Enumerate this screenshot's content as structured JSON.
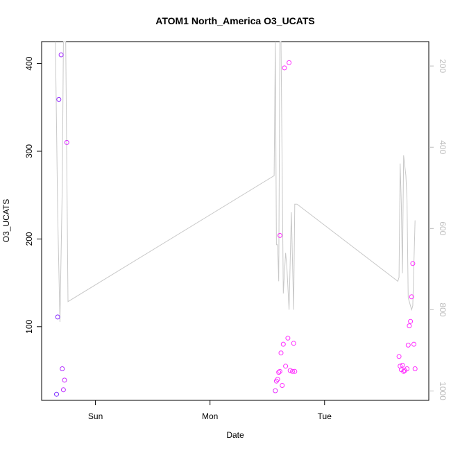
{
  "chart_data": {
    "type": "scatter",
    "title": "ATOM1 North_America O3_UCATS",
    "xlabel": "Date",
    "ylabel": "O3_UCATS",
    "x_ticks": [
      {
        "label": "Sun",
        "value": 1.0
      },
      {
        "label": "Mon",
        "value": 2.0
      },
      {
        "label": "Tue",
        "value": 3.0
      }
    ],
    "y_ticks": [
      100,
      200,
      300,
      400
    ],
    "y2_ticks": [
      200,
      400,
      600,
      800,
      1000
    ],
    "xlim": [
      0.53,
      3.91
    ],
    "ylim": [
      16,
      425
    ],
    "y2lim": [
      1023,
      140
    ],
    "y2_reversed": true,
    "colors": {
      "axis": "#000000",
      "secondary_axis": "#bdbdbd",
      "line": "#c8c8c8",
      "points_early": "#7b2bff",
      "points_late": "#ff2bff"
    },
    "points": [
      {
        "x": 0.66,
        "y": 23
      },
      {
        "x": 0.67,
        "y": 111
      },
      {
        "x": 0.68,
        "y": 359
      },
      {
        "x": 0.7,
        "y": 410
      },
      {
        "x": 0.71,
        "y": 52
      },
      {
        "x": 0.72,
        "y": 28
      },
      {
        "x": 0.73,
        "y": 39
      },
      {
        "x": 0.75,
        "y": 310
      },
      {
        "x": 2.57,
        "y": 27
      },
      {
        "x": 2.58,
        "y": 38
      },
      {
        "x": 2.59,
        "y": 40
      },
      {
        "x": 2.6,
        "y": 48
      },
      {
        "x": 2.61,
        "y": 49
      },
      {
        "x": 2.61,
        "y": 204
      },
      {
        "x": 2.62,
        "y": 70
      },
      {
        "x": 2.63,
        "y": 33
      },
      {
        "x": 2.64,
        "y": 80
      },
      {
        "x": 2.65,
        "y": 395
      },
      {
        "x": 2.66,
        "y": 55
      },
      {
        "x": 2.68,
        "y": 87
      },
      {
        "x": 2.69,
        "y": 401
      },
      {
        "x": 2.7,
        "y": 50
      },
      {
        "x": 2.72,
        "y": 49
      },
      {
        "x": 2.73,
        "y": 81
      },
      {
        "x": 2.74,
        "y": 49
      },
      {
        "x": 3.65,
        "y": 66
      },
      {
        "x": 3.66,
        "y": 55
      },
      {
        "x": 3.67,
        "y": 51
      },
      {
        "x": 3.68,
        "y": 56
      },
      {
        "x": 3.69,
        "y": 49
      },
      {
        "x": 3.7,
        "y": 50
      },
      {
        "x": 3.72,
        "y": 52
      },
      {
        "x": 3.73,
        "y": 79
      },
      {
        "x": 3.74,
        "y": 101
      },
      {
        "x": 3.75,
        "y": 106
      },
      {
        "x": 3.76,
        "y": 134
      },
      {
        "x": 3.77,
        "y": 172
      },
      {
        "x": 3.78,
        "y": 80
      },
      {
        "x": 3.79,
        "y": 52
      }
    ],
    "line_series": {
      "name": "",
      "axis": "right",
      "points": [
        {
          "x": 0.65,
          "y2": 140
        },
        {
          "x": 0.66,
          "y2": 350
        },
        {
          "x": 0.67,
          "y2": 560
        },
        {
          "x": 0.69,
          "y2": 830
        },
        {
          "x": 0.71,
          "y2": 500
        },
        {
          "x": 0.72,
          "y2": 140
        },
        {
          "x": 0.74,
          "y2": 140
        },
        {
          "x": 0.76,
          "y2": 780
        },
        {
          "x": 2.56,
          "y2": 470
        },
        {
          "x": 2.57,
          "y2": 140
        },
        {
          "x": 2.58,
          "y2": 640
        },
        {
          "x": 2.59,
          "y2": 640
        },
        {
          "x": 2.6,
          "y2": 730
        },
        {
          "x": 2.61,
          "y2": 140
        },
        {
          "x": 2.62,
          "y2": 140
        },
        {
          "x": 2.64,
          "y2": 760
        },
        {
          "x": 2.66,
          "y2": 660
        },
        {
          "x": 2.67,
          "y2": 690
        },
        {
          "x": 2.69,
          "y2": 800
        },
        {
          "x": 2.71,
          "y2": 560
        },
        {
          "x": 2.73,
          "y2": 800
        },
        {
          "x": 2.74,
          "y2": 540
        },
        {
          "x": 2.76,
          "y2": 540
        },
        {
          "x": 3.64,
          "y2": 730
        },
        {
          "x": 3.65,
          "y2": 720
        },
        {
          "x": 3.66,
          "y2": 440
        },
        {
          "x": 3.67,
          "y2": 540
        },
        {
          "x": 3.68,
          "y2": 710
        },
        {
          "x": 3.69,
          "y2": 420
        },
        {
          "x": 3.71,
          "y2": 470
        },
        {
          "x": 3.72,
          "y2": 530
        },
        {
          "x": 3.73,
          "y2": 770
        },
        {
          "x": 3.76,
          "y2": 800
        },
        {
          "x": 3.77,
          "y2": 790
        },
        {
          "x": 3.79,
          "y2": 580
        }
      ]
    },
    "grid": false,
    "legend": "none"
  }
}
